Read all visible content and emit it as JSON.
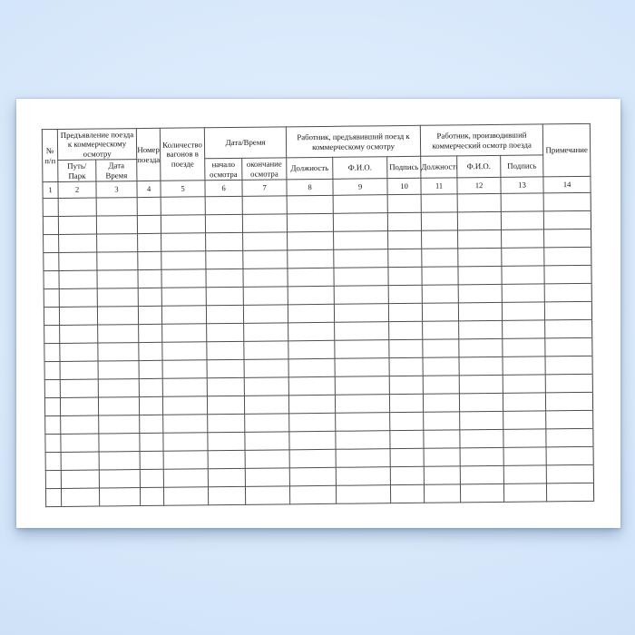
{
  "document": {
    "kind": "blank railway commercial-inspection register form",
    "language": "ru"
  },
  "colors": {
    "background_center": "#e8f3fe",
    "background_edge": "#c7dbf3",
    "paper": "#ffffff",
    "table_border": "#4e4e4e",
    "text": "#161616"
  },
  "table": {
    "header": {
      "row_number": "№\nп/п",
      "presentation_group": "Предъявление поезда\nк коммерческому\nосмотру",
      "train_number": "Номер\nпоезда",
      "wagons_in_train": "Количество\nвагонов в\nпоезде",
      "datetime_group": "Дата/Время",
      "presenter_group": "Работник, предъявивший поезд к\nкоммерческому осмотру",
      "inspector_group": "Работник, производивший\nкоммерческий осмотр поезда",
      "note": "Примечание"
    },
    "subheader": {
      "track_park": "Путь/\nПарк",
      "date_time": "Дата\nВремя",
      "inspection_start": "начало\nосмотра",
      "inspection_end": "окончание\nосмотра",
      "presenter_position": "Должность",
      "presenter_name": "Ф.И.О.",
      "presenter_signature": "Подпись",
      "inspector_position": "Должность",
      "inspector_name": "Ф.И.О.",
      "inspector_signature": "Подпись"
    },
    "column_numbers": [
      "1",
      "2",
      "3",
      "4",
      "5",
      "6",
      "7",
      "8",
      "9",
      "10",
      "11",
      "12",
      "13",
      "14"
    ],
    "column_count": 14,
    "empty_row_count": 17
  }
}
